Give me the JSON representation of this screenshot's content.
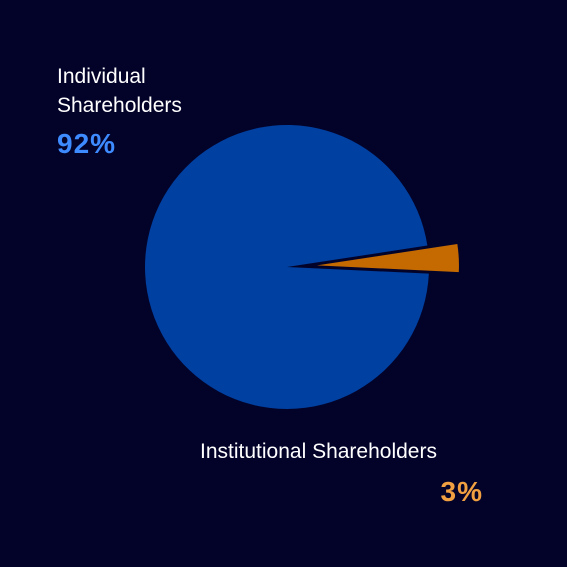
{
  "chart_data": {
    "type": "pie",
    "categories": [
      "Individual Shareholders",
      "Institutional Shareholders"
    ],
    "values": [
      92,
      3
    ],
    "value_labels": [
      "92%",
      "3%"
    ],
    "colors": [
      "#0040a0",
      "#c46a00"
    ],
    "label_colors": [
      "#3d8bff",
      "#f0a040"
    ],
    "exploded": [
      false,
      true
    ]
  }
}
